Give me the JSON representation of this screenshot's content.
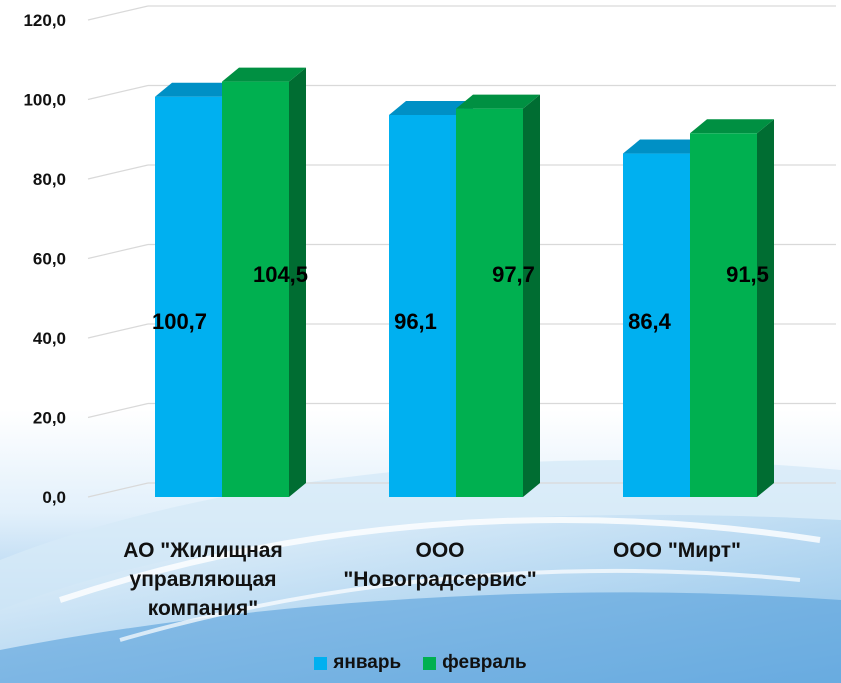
{
  "chart_data": {
    "type": "bar",
    "categories": [
      "АО \"Жилищная управляющая компания\"",
      "ООО \"Новоградсервис\"",
      "ООО \"Мирт\""
    ],
    "series": [
      {
        "name": "январь",
        "values": [
          100.7,
          96.1,
          86.4
        ],
        "labels": [
          "100,7",
          "96,1",
          "86,4"
        ],
        "color": "#00b0f0"
      },
      {
        "name": "февраль",
        "values": [
          104.5,
          97.7,
          91.5
        ],
        "labels": [
          "104,5",
          "97,7",
          "91,5"
        ],
        "color": "#00b050"
      }
    ],
    "yticks": [
      "0,0",
      "20,0",
      "40,0",
      "60,0",
      "80,0",
      "100,0",
      "120,0"
    ],
    "ylim": [
      0,
      120
    ],
    "grid": true,
    "legend": "bottom",
    "style": "3d-column"
  },
  "category_lines": [
    [
      "АО \"Жилищная",
      "управляющая",
      "компания\""
    ],
    [
      "ООО",
      "\"Новоградсервис\""
    ],
    [
      "ООО \"Мирт\""
    ]
  ],
  "legend": [
    {
      "label": "январь",
      "color": "#00b0f0"
    },
    {
      "label": "февраль",
      "color": "#00b050"
    }
  ]
}
